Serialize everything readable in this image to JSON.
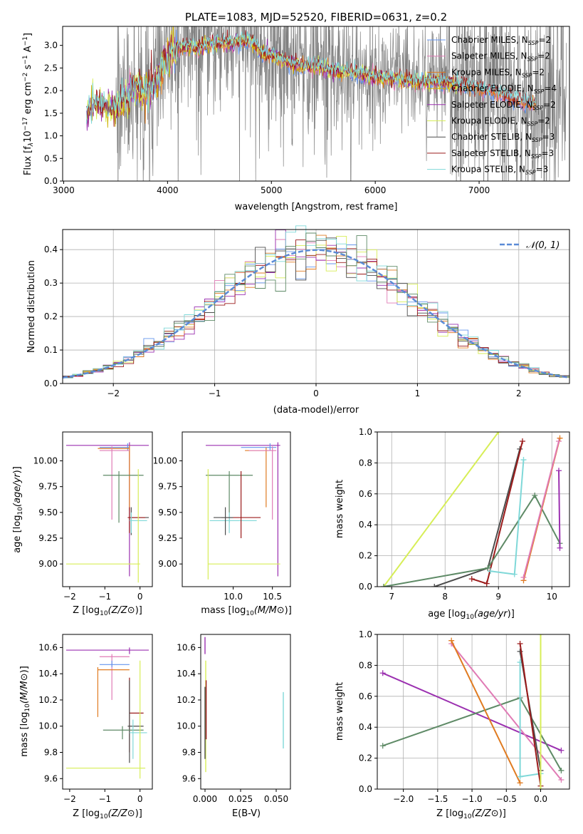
{
  "title": "PLATE=1083, MJD=52520, FIBERID=0631, z=0.2",
  "colors": {
    "chab_miles": "#6495ed",
    "salp_miles": "#e07bb5",
    "krou_miles": "#e07b20",
    "chab_elodie": "#cdb000",
    "salp_elodie": "#9b30b0",
    "krou_elodie": "#d7ee57",
    "chab_stelib": "#4d4d4d",
    "salp_stelib": "#9b1b1b",
    "krou_stelib": "#7fd8d8",
    "gauss": "#5b8bd6",
    "extra_green": "#5e8a66"
  },
  "panel_spectrum": {
    "xlabel": "wavelength [Angstrom, rest frame]",
    "ylabel_main": "Flux [f",
    "ylabel_tail": "10",
    "xticks": [
      "3000",
      "4000",
      "5000",
      "6000",
      "7000"
    ],
    "yticks": [
      "0.0",
      "0.5",
      "1.0",
      "1.5",
      "2.0",
      "2.5",
      "3.0"
    ],
    "legend": [
      {
        "name": "Chabrier MILES, N",
        "sub": "SSP",
        "val": "=2"
      },
      {
        "name": "Salpeter MILES, N",
        "sub": "SSP",
        "val": "=2"
      },
      {
        "name": "Kroupa MILES, N",
        "sub": "SSP",
        "val": "=2"
      },
      {
        "name": "Chabrier ELODIE, N",
        "sub": "SSP",
        "val": "=4"
      },
      {
        "name": "Salpeter ELODIE, N",
        "sub": "SSP",
        "val": "=2"
      },
      {
        "name": "Kroupa ELODIE, N",
        "sub": "SSP",
        "val": "=2"
      },
      {
        "name": "Chabrier STELIB, N",
        "sub": "SSP",
        "val": "=3"
      },
      {
        "name": "Salpeter STELIB, N",
        "sub": "SSP",
        "val": "=3"
      },
      {
        "name": "Kroupa STELIB, N",
        "sub": "SSP",
        "val": "=3"
      }
    ]
  },
  "panel_hist": {
    "xlabel": "(data-model)/error",
    "ylabel": "Normed distribution",
    "xticks": [
      "−2",
      "−1",
      "0",
      "1",
      "2"
    ],
    "yticks": [
      "0.0",
      "0.1",
      "0.2",
      "0.3",
      "0.4"
    ],
    "legend_label": "𝒩(0, 1)"
  },
  "panel_small": {
    "age_label": "age  [log",
    "z_label": "Z [log",
    "mass_label": "mass [log",
    "ebv_label": "E(B-V)",
    "mass_weight_label": "mass weight",
    "age_yticks": [
      "9.00",
      "9.25",
      "9.50",
      "9.75",
      "10.00"
    ],
    "z_xticks": [
      "−2",
      "−1",
      "0"
    ],
    "mass_xticks": [
      "10.0",
      "10.5"
    ],
    "mass_yticks": [
      "9.6",
      "9.8",
      "10.0",
      "10.2",
      "10.4",
      "10.6"
    ],
    "ebv_xticks": [
      "0.000",
      "0.025",
      "0.050"
    ],
    "mw_yticks": [
      "0.0",
      "0.2",
      "0.4",
      "0.6",
      "0.8",
      "1.0"
    ],
    "age_xticks": [
      "7",
      "8",
      "9",
      "10"
    ],
    "zbig_xticks": [
      "−2.0",
      "−1.5",
      "−1.0",
      "−0.5",
      "0.0"
    ]
  },
  "chart_data": [
    {
      "type": "line",
      "title": "PLATE=1083, MJD=52520, FIBERID=0631, z=0.2",
      "xlabel": "wavelength [Angstrom, rest frame]",
      "ylabel": "Flux [fλ 10^-17 erg cm^-2 s^-1 A^-1]",
      "xlim": [
        2990,
        7870
      ],
      "ylim": [
        0,
        3.42
      ],
      "series_names": [
        "Chabrier MILES, N_SSP=2",
        "Salpeter MILES, N_SSP=2",
        "Kroupa MILES, N_SSP=2",
        "Chabrier ELODIE, N_SSP=4",
        "Salpeter ELODIE, N_SSP=2",
        "Kroupa ELODIE, N_SSP=2",
        "Chabrier STELIB, N_SSP=3",
        "Salpeter STELIB, N_SSP=3",
        "Kroupa STELIB, N_SSP=3"
      ],
      "model_continuum": {
        "x": [
          3220,
          3300,
          3400,
          3500,
          3600,
          3700,
          3800,
          3900,
          4000,
          4100,
          4200,
          4300,
          4400,
          4500,
          4600,
          4700,
          4800,
          4900,
          5000,
          5200,
          5400,
          5600,
          5800,
          6000,
          6200,
          6400,
          6600,
          6800,
          7000,
          7200,
          7400
        ],
        "y": [
          1.45,
          1.75,
          1.65,
          1.6,
          1.85,
          2.05,
          1.95,
          2.2,
          2.75,
          2.95,
          3.0,
          2.95,
          3.05,
          3.05,
          3.05,
          3.1,
          3.1,
          2.85,
          2.8,
          2.6,
          2.55,
          2.45,
          2.4,
          2.3,
          2.25,
          2.2,
          2.2,
          2.15,
          2.05,
          1.95,
          1.75
        ]
      },
      "data_range": [
        3220,
        7840
      ]
    },
    {
      "type": "line",
      "xlabel": "(data-model)/error",
      "ylabel": "Normed distribution",
      "xlim": [
        -2.5,
        2.5
      ],
      "ylim": [
        0,
        0.46
      ],
      "reference": "N(0,1) gaussian",
      "bin_width": 0.1
    },
    {
      "type": "scatter",
      "xlabel": "Z [log10(Z/Zsun)]",
      "ylabel": "age [log10(age/yr)]",
      "xlim": [
        -2.2,
        0.35
      ],
      "ylim": [
        8.78,
        10.28
      ],
      "points": [
        {
          "c": "salp_elodie",
          "x": -0.3,
          "y": 10.15,
          "xe": [
            -2.1,
            0.25
          ],
          "ye": [
            8.88,
            10.18
          ]
        },
        {
          "c": "chab_miles",
          "x": -0.35,
          "y": 10.13,
          "xe": [
            -1.15,
            -0.3
          ],
          "ye": [
            10.1,
            10.17
          ]
        },
        {
          "c": "krou_miles",
          "x": -0.3,
          "y": 10.12,
          "xe": [
            -1.2,
            -0.3
          ],
          "ye": [
            9.52,
            10.15
          ]
        },
        {
          "c": "salp_miles",
          "x": -0.8,
          "y": 10.1,
          "xe": [
            -1.15,
            -0.3
          ],
          "ye": [
            9.43,
            10.14
          ]
        },
        {
          "c": "extra_green",
          "x": -0.6,
          "y": 9.86,
          "xe": [
            -1.05,
            0.1
          ],
          "ye": [
            9.4,
            9.9
          ]
        },
        {
          "c": "chab_stelib",
          "x": -0.25,
          "y": 9.45,
          "xe": [
            -0.3,
            0.25
          ],
          "ye": [
            9.28,
            9.55
          ]
        },
        {
          "c": "salp_stelib",
          "x": -0.3,
          "y": 9.45,
          "xe": [
            -0.35,
            0.15
          ],
          "ye": [
            9.3,
            9.55
          ]
        },
        {
          "c": "krou_stelib",
          "x": -0.25,
          "y": 9.42,
          "xe": [
            -0.3,
            0.2
          ],
          "ye": [
            9.3,
            9.5
          ]
        },
        {
          "c": "krou_elodie",
          "x": -0.05,
          "y": 9.0,
          "xe": [
            -2.1,
            0.0
          ],
          "ye": [
            8.82,
            9.92
          ]
        }
      ]
    },
    {
      "type": "scatter",
      "xlabel": "mass [log10(M/Msun)]",
      "ylabel": "age",
      "xlim": [
        9.35,
        10.73
      ],
      "ylim": [
        8.78,
        10.28
      ]
    },
    {
      "type": "line",
      "xlabel": "age [log10(age/yr)]",
      "ylabel": "mass weight",
      "xlim": [
        6.73,
        10.33
      ],
      "ylim": [
        0,
        1.0
      ],
      "series": [
        {
          "c": "krou_elodie",
          "x": [
            6.85,
            9.0
          ],
          "y": [
            0.0,
            1.0
          ]
        },
        {
          "c": "chab_stelib",
          "x": [
            7.8,
            8.8,
            9.4
          ],
          "y": [
            0.0,
            0.12,
            0.89
          ]
        },
        {
          "c": "salp_stelib",
          "x": [
            8.5,
            8.78,
            9.45
          ],
          "y": [
            0.05,
            0.02,
            0.94
          ]
        },
        {
          "c": "extra_green",
          "x": [
            6.85,
            8.8,
            9.68,
            10.15
          ],
          "y": [
            0.0,
            0.12,
            0.59,
            0.28
          ]
        },
        {
          "c": "krou_stelib",
          "x": [
            8.85,
            9.3,
            9.47
          ],
          "y": [
            0.1,
            0.08,
            0.82
          ]
        },
        {
          "c": "krou_miles",
          "x": [
            9.47,
            10.15
          ],
          "y": [
            0.04,
            0.96
          ]
        },
        {
          "c": "salp_miles",
          "x": [
            9.47,
            10.13
          ],
          "y": [
            0.06,
            0.94
          ]
        },
        {
          "c": "salp_elodie",
          "x": [
            10.13,
            10.15
          ],
          "y": [
            0.75,
            0.25
          ]
        }
      ]
    },
    {
      "type": "scatter",
      "xlabel": "Z [log10(Z/Zsun)]",
      "ylabel": "mass [log10(M/Msun)]",
      "xlim": [
        -2.2,
        0.35
      ],
      "ylim": [
        9.52,
        10.7
      ]
    },
    {
      "type": "scatter",
      "xlabel": "E(B-V)",
      "ylabel": "mass",
      "xlim": [
        -0.003,
        0.06
      ],
      "ylim": [
        9.52,
        10.7
      ]
    },
    {
      "type": "line",
      "xlabel": "Z [log10(Z/Zsun)]",
      "ylabel": "mass weight",
      "xlim": [
        -2.38,
        0.42
      ],
      "ylim": [
        0,
        1.0
      ],
      "series": [
        {
          "c": "salp_elodie",
          "x": [
            -2.3,
            0.3
          ],
          "y": [
            0.75,
            0.25
          ]
        },
        {
          "c": "extra_green",
          "x": [
            -2.3,
            -0.3,
            0.3
          ],
          "y": [
            0.28,
            0.59,
            0.12
          ]
        },
        {
          "c": "salp_miles",
          "x": [
            -1.3,
            0.3
          ],
          "y": [
            0.94,
            0.06
          ]
        },
        {
          "c": "krou_miles",
          "x": [
            -1.3,
            -0.3
          ],
          "y": [
            0.96,
            0.04
          ]
        },
        {
          "c": "krou_stelib",
          "x": [
            -0.3,
            -0.3,
            0.0
          ],
          "y": [
            0.82,
            0.08,
            0.1
          ]
        },
        {
          "c": "chab_stelib",
          "x": [
            -0.3,
            0.0
          ],
          "y": [
            0.89,
            0.12
          ]
        },
        {
          "c": "salp_stelib",
          "x": [
            -0.3,
            0.0
          ],
          "y": [
            0.94,
            0.02
          ]
        },
        {
          "c": "krou_elodie",
          "x": [
            0.0,
            0.0
          ],
          "y": [
            0.0,
            1.0
          ]
        }
      ]
    }
  ]
}
